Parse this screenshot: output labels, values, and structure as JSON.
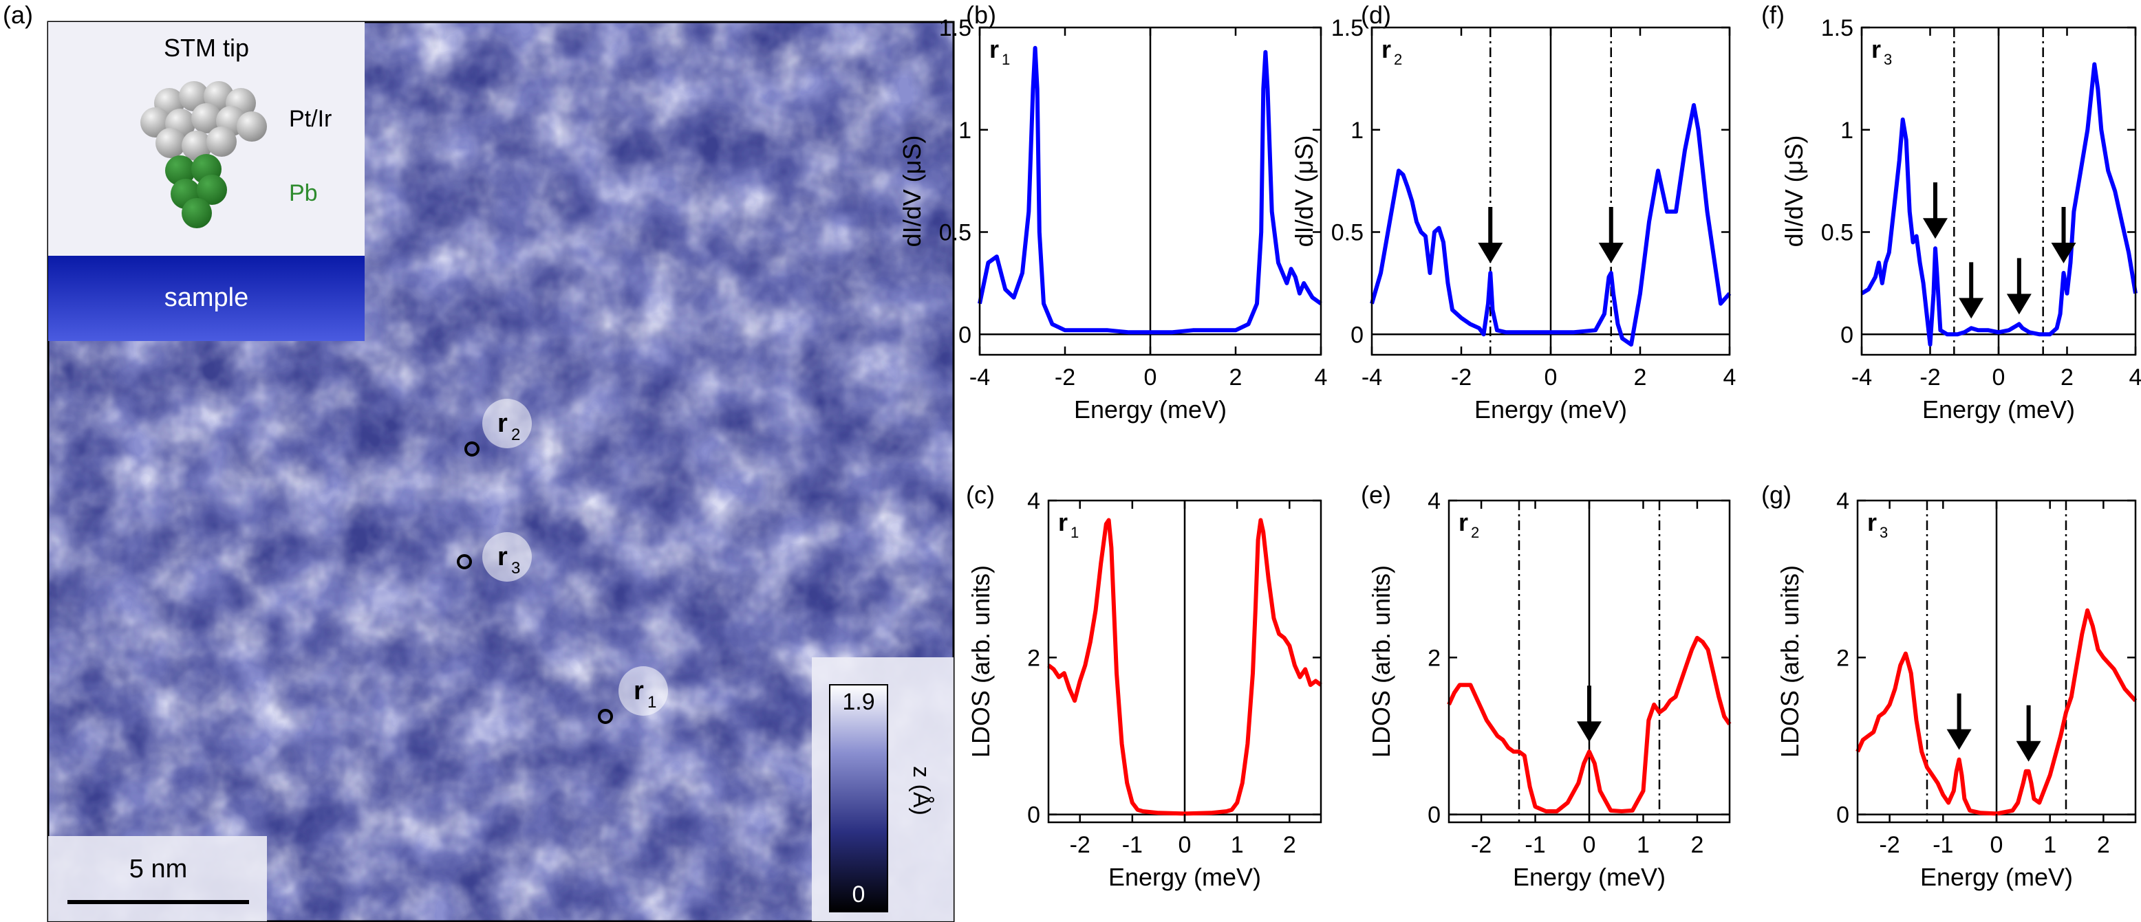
{
  "panel_a": {
    "letter": "(a)",
    "inset": {
      "tip_label": "STM tip",
      "tip_material": "Pt/Ir",
      "apex_material": "Pb",
      "sample_label": "sample",
      "colors": {
        "pt_ir": "#b8b8b8",
        "pb": "#2e8b2e",
        "sample": "#1a2fd0"
      }
    },
    "scale_bar": "5 nm",
    "colorbar": {
      "max": "1.9",
      "min": "0",
      "label": "z (Å)"
    },
    "markers": [
      {
        "sym": "r",
        "sub": "2"
      },
      {
        "sym": "r",
        "sub": "3"
      },
      {
        "sym": "r",
        "sub": "1"
      }
    ],
    "colors": {
      "topo_mid": "#8a8fd0",
      "topo_light": "#e8e9f8",
      "topo_dark": "#3a3f8f"
    }
  },
  "chart_data": [
    {
      "id": "b",
      "letter": "(b)",
      "type": "line",
      "pos_tag": "r",
      "pos_sub": "1",
      "color": "#0000ff",
      "xlabel": "Energy (meV)",
      "ylabel": "dI/dV (μS)",
      "xlim": [
        -4,
        4
      ],
      "ylim": [
        -0.1,
        1.5
      ],
      "xticks": [
        -4,
        -2,
        0,
        2,
        4
      ],
      "yticks": [
        0,
        0.5,
        1,
        1.5
      ],
      "dashed_x": [],
      "arrows": [],
      "x": [
        -4.0,
        -3.8,
        -3.6,
        -3.4,
        -3.2,
        -3.0,
        -2.85,
        -2.75,
        -2.7,
        -2.65,
        -2.6,
        -2.5,
        -2.3,
        -2.0,
        -1.5,
        -1.0,
        -0.5,
        0.0,
        0.5,
        1.0,
        1.5,
        2.0,
        2.3,
        2.5,
        2.6,
        2.65,
        2.7,
        2.75,
        2.85,
        3.0,
        3.2,
        3.3,
        3.4,
        3.5,
        3.6,
        3.8,
        4.0
      ],
      "y": [
        0.15,
        0.35,
        0.38,
        0.22,
        0.18,
        0.3,
        0.6,
        1.2,
        1.4,
        1.2,
        0.5,
        0.15,
        0.05,
        0.02,
        0.02,
        0.02,
        0.01,
        0.01,
        0.01,
        0.02,
        0.02,
        0.02,
        0.05,
        0.15,
        0.5,
        1.2,
        1.38,
        1.2,
        0.6,
        0.35,
        0.25,
        0.32,
        0.28,
        0.2,
        0.25,
        0.18,
        0.15
      ]
    },
    {
      "id": "d",
      "letter": "(d)",
      "type": "line",
      "pos_tag": "r",
      "pos_sub": "2",
      "color": "#0000ff",
      "xlabel": "Energy (meV)",
      "ylabel": "dI/dV (μS)",
      "xlim": [
        -4,
        4
      ],
      "ylim": [
        -0.1,
        1.5
      ],
      "xticks": [
        -4,
        -2,
        0,
        2,
        4
      ],
      "yticks": [
        0,
        0.5,
        1,
        1.5
      ],
      "dashed_x": [
        -1.35,
        1.35
      ],
      "arrows": [
        -1.35,
        1.35
      ],
      "x": [
        -4.0,
        -3.8,
        -3.6,
        -3.4,
        -3.3,
        -3.2,
        -3.1,
        -3.0,
        -2.9,
        -2.8,
        -2.7,
        -2.6,
        -2.5,
        -2.4,
        -2.3,
        -2.2,
        -2.0,
        -1.8,
        -1.6,
        -1.5,
        -1.4,
        -1.35,
        -1.3,
        -1.2,
        -1.0,
        -0.5,
        0.0,
        0.5,
        1.0,
        1.2,
        1.3,
        1.35,
        1.4,
        1.5,
        1.6,
        1.8,
        2.0,
        2.2,
        2.4,
        2.5,
        2.6,
        2.8,
        3.0,
        3.2,
        3.3,
        3.5,
        3.7,
        3.8,
        4.0
      ],
      "y": [
        0.15,
        0.3,
        0.55,
        0.8,
        0.78,
        0.72,
        0.65,
        0.55,
        0.5,
        0.48,
        0.3,
        0.5,
        0.52,
        0.45,
        0.25,
        0.12,
        0.08,
        0.05,
        0.03,
        0.0,
        0.15,
        0.3,
        0.12,
        0.02,
        0.01,
        0.01,
        0.01,
        0.01,
        0.02,
        0.1,
        0.28,
        0.3,
        0.2,
        0.05,
        -0.02,
        -0.05,
        0.2,
        0.55,
        0.8,
        0.7,
        0.6,
        0.6,
        0.9,
        1.12,
        1.0,
        0.6,
        0.3,
        0.15,
        0.2
      ]
    },
    {
      "id": "f",
      "letter": "(f)",
      "type": "line",
      "pos_tag": "r",
      "pos_sub": "3",
      "color": "#0000ff",
      "xlabel": "Energy (meV)",
      "ylabel": "dI/dV (μS)",
      "xlim": [
        -4,
        4
      ],
      "ylim": [
        -0.1,
        1.5
      ],
      "xticks": [
        -4,
        -2,
        0,
        2,
        4
      ],
      "yticks": [
        0,
        0.5,
        1,
        1.5
      ],
      "dashed_x": [
        -1.3,
        1.3
      ],
      "arrows": [
        -1.85,
        -0.8,
        0.6,
        1.9
      ],
      "x": [
        -4.0,
        -3.8,
        -3.6,
        -3.5,
        -3.4,
        -3.3,
        -3.2,
        -3.1,
        -3.0,
        -2.9,
        -2.8,
        -2.7,
        -2.6,
        -2.5,
        -2.4,
        -2.3,
        -2.2,
        -2.1,
        -2.0,
        -1.9,
        -1.85,
        -1.8,
        -1.7,
        -1.5,
        -1.2,
        -1.0,
        -0.8,
        -0.6,
        -0.3,
        0.0,
        0.3,
        0.5,
        0.6,
        0.7,
        0.9,
        1.2,
        1.5,
        1.7,
        1.8,
        1.9,
        2.0,
        2.1,
        2.2,
        2.4,
        2.6,
        2.8,
        2.9,
        3.0,
        3.2,
        3.4,
        3.6,
        3.8,
        4.0
      ],
      "y": [
        0.2,
        0.22,
        0.28,
        0.35,
        0.25,
        0.35,
        0.4,
        0.55,
        0.7,
        0.85,
        1.05,
        0.95,
        0.6,
        0.45,
        0.48,
        0.35,
        0.25,
        0.1,
        -0.05,
        0.2,
        0.42,
        0.3,
        0.02,
        0.0,
        0.0,
        0.01,
        0.03,
        0.02,
        0.02,
        0.01,
        0.02,
        0.04,
        0.05,
        0.03,
        0.01,
        0.0,
        0.0,
        0.03,
        0.1,
        0.3,
        0.2,
        0.35,
        0.6,
        0.8,
        1.0,
        1.32,
        1.2,
        1.0,
        0.8,
        0.7,
        0.55,
        0.4,
        0.2
      ]
    },
    {
      "id": "c",
      "letter": "(c)",
      "type": "line",
      "pos_tag": "r",
      "pos_sub": "1",
      "color": "#ff0000",
      "xlabel": "Energy (meV)",
      "ylabel": "LDOS (arb. units)",
      "xlim": [
        -2.6,
        2.6
      ],
      "ylim": [
        -0.1,
        4
      ],
      "xticks": [
        -2,
        -1,
        0,
        1,
        2
      ],
      "yticks": [
        0,
        2,
        4
      ],
      "dashed_x": [],
      "arrows": [],
      "x": [
        -2.6,
        -2.5,
        -2.4,
        -2.3,
        -2.2,
        -2.1,
        -2.0,
        -1.9,
        -1.8,
        -1.7,
        -1.6,
        -1.5,
        -1.45,
        -1.4,
        -1.35,
        -1.3,
        -1.2,
        -1.1,
        -1.0,
        -0.9,
        -0.8,
        -0.5,
        0.0,
        0.5,
        0.8,
        0.9,
        1.0,
        1.1,
        1.2,
        1.3,
        1.35,
        1.4,
        1.45,
        1.5,
        1.6,
        1.7,
        1.8,
        1.9,
        2.0,
        2.1,
        2.2,
        2.3,
        2.4,
        2.5,
        2.6
      ],
      "y": [
        1.9,
        1.85,
        1.75,
        1.8,
        1.6,
        1.45,
        1.7,
        1.9,
        2.2,
        2.6,
        3.2,
        3.7,
        3.75,
        3.4,
        2.6,
        1.8,
        0.9,
        0.4,
        0.15,
        0.06,
        0.04,
        0.02,
        0.01,
        0.02,
        0.04,
        0.06,
        0.15,
        0.4,
        0.9,
        1.8,
        2.6,
        3.5,
        3.75,
        3.6,
        3.0,
        2.5,
        2.3,
        2.25,
        2.15,
        1.9,
        1.75,
        1.85,
        1.65,
        1.7,
        1.65
      ]
    },
    {
      "id": "e",
      "letter": "(e)",
      "type": "line",
      "pos_tag": "r",
      "pos_sub": "2",
      "color": "#ff0000",
      "xlabel": "Energy (meV)",
      "ylabel": "LDOS (arb. units)",
      "xlim": [
        -2.6,
        2.6
      ],
      "ylim": [
        -0.1,
        4
      ],
      "xticks": [
        -2,
        -1,
        0,
        1,
        2
      ],
      "yticks": [
        0,
        2,
        4
      ],
      "dashed_x": [
        -1.3,
        1.3
      ],
      "arrows": [
        0.0
      ],
      "x": [
        -2.6,
        -2.5,
        -2.4,
        -2.3,
        -2.2,
        -2.1,
        -2.0,
        -1.9,
        -1.8,
        -1.7,
        -1.6,
        -1.5,
        -1.4,
        -1.3,
        -1.2,
        -1.1,
        -1.0,
        -0.8,
        -0.6,
        -0.4,
        -0.2,
        -0.1,
        0.0,
        0.1,
        0.2,
        0.4,
        0.6,
        0.8,
        1.0,
        1.1,
        1.2,
        1.3,
        1.4,
        1.5,
        1.6,
        1.7,
        1.8,
        1.9,
        2.0,
        2.1,
        2.2,
        2.3,
        2.4,
        2.5,
        2.6
      ],
      "y": [
        1.4,
        1.55,
        1.65,
        1.65,
        1.65,
        1.5,
        1.35,
        1.2,
        1.1,
        1.0,
        0.95,
        0.85,
        0.8,
        0.8,
        0.75,
        0.35,
        0.1,
        0.04,
        0.04,
        0.15,
        0.4,
        0.65,
        0.8,
        0.65,
        0.3,
        0.05,
        0.04,
        0.05,
        0.3,
        1.2,
        1.4,
        1.3,
        1.35,
        1.45,
        1.5,
        1.7,
        1.9,
        2.1,
        2.25,
        2.2,
        2.1,
        1.8,
        1.5,
        1.25,
        1.15
      ]
    },
    {
      "id": "g",
      "letter": "(g)",
      "type": "line",
      "pos_tag": "r",
      "pos_sub": "3",
      "color": "#ff0000",
      "xlabel": "Energy (meV)",
      "ylabel": "LDOS (arb. units)",
      "xlim": [
        -2.6,
        2.6
      ],
      "ylim": [
        -0.1,
        4
      ],
      "xticks": [
        -2,
        -1,
        0,
        1,
        2
      ],
      "yticks": [
        0,
        2,
        4
      ],
      "dashed_x": [
        -1.3,
        1.3
      ],
      "arrows": [
        -0.7,
        0.6
      ],
      "x": [
        -2.6,
        -2.5,
        -2.4,
        -2.3,
        -2.2,
        -2.1,
        -2.0,
        -1.9,
        -1.8,
        -1.7,
        -1.6,
        -1.5,
        -1.4,
        -1.3,
        -1.2,
        -1.1,
        -1.0,
        -0.9,
        -0.8,
        -0.75,
        -0.7,
        -0.65,
        -0.6,
        -0.5,
        -0.3,
        0.0,
        0.3,
        0.4,
        0.5,
        0.55,
        0.6,
        0.65,
        0.7,
        0.8,
        1.0,
        1.2,
        1.3,
        1.4,
        1.5,
        1.6,
        1.7,
        1.8,
        1.9,
        2.0,
        2.2,
        2.4,
        2.6
      ],
      "y": [
        0.8,
        0.95,
        1.0,
        1.05,
        1.25,
        1.3,
        1.4,
        1.6,
        1.9,
        2.05,
        1.8,
        1.2,
        0.8,
        0.6,
        0.5,
        0.4,
        0.25,
        0.15,
        0.3,
        0.55,
        0.7,
        0.5,
        0.2,
        0.05,
        0.02,
        0.01,
        0.05,
        0.15,
        0.4,
        0.55,
        0.55,
        0.4,
        0.2,
        0.15,
        0.5,
        1.0,
        1.3,
        1.5,
        1.9,
        2.3,
        2.6,
        2.4,
        2.1,
        2.0,
        1.85,
        1.6,
        1.45
      ]
    }
  ]
}
